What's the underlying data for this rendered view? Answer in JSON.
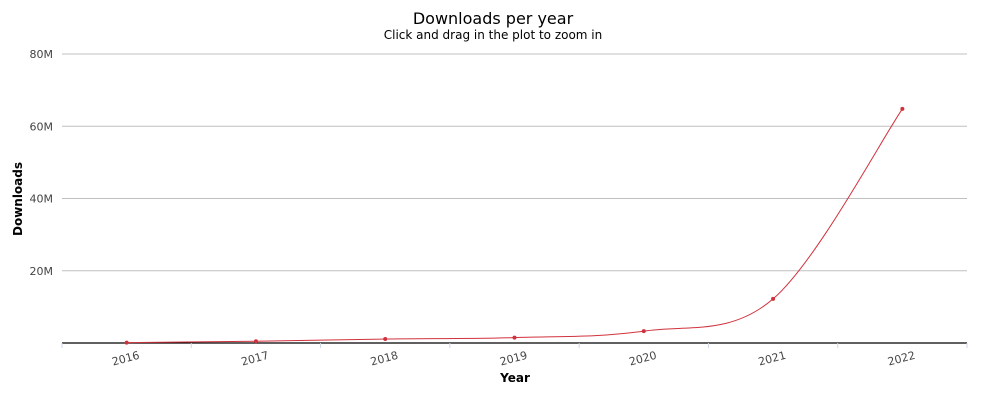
{
  "chart_data": {
    "type": "line",
    "title": "Downloads per year",
    "subtitle": "Click and drag in the plot to zoom in",
    "xlabel": "Year",
    "ylabel": "Downloads",
    "categories": [
      "2016",
      "2017",
      "2018",
      "2019",
      "2020",
      "2021",
      "2022"
    ],
    "series": [
      {
        "values": [
          100000,
          500000,
          1100000,
          1500000,
          3300000,
          12200000,
          64800000
        ]
      }
    ],
    "ylim": [
      0,
      80000000
    ],
    "yticks": [
      {
        "value": 0,
        "label": ""
      },
      {
        "value": 20000000,
        "label": "20M"
      },
      {
        "value": 40000000,
        "label": "40M"
      },
      {
        "value": 60000000,
        "label": "60M"
      },
      {
        "value": 80000000,
        "label": "80M"
      }
    ],
    "grid": true,
    "legend": "none",
    "colors": {
      "line": "#d0323d",
      "grid": "#c0c0c0",
      "axis": "#000000"
    }
  }
}
